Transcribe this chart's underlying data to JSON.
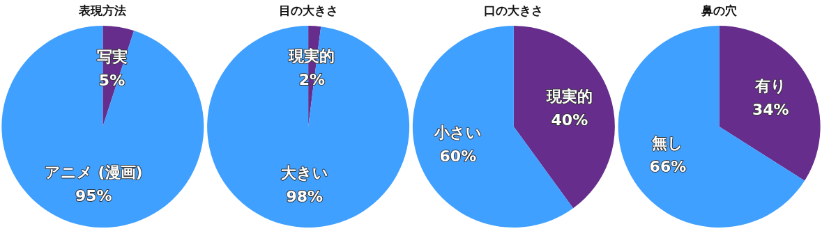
{
  "chart_data": [
    {
      "type": "pie",
      "title": "表現方法",
      "categories": [
        "写実",
        "アニメ (漫画)"
      ],
      "values": [
        5,
        95
      ],
      "colors": [
        "#662d8c",
        "#3fa0ff"
      ],
      "value_labels": [
        "5%",
        "95%"
      ]
    },
    {
      "type": "pie",
      "title": "目の大きさ",
      "categories": [
        "現実的",
        "大きい"
      ],
      "values": [
        2,
        98
      ],
      "colors": [
        "#662d8c",
        "#3fa0ff"
      ],
      "value_labels": [
        "2%",
        "98%"
      ]
    },
    {
      "type": "pie",
      "title": "口の大きさ",
      "categories": [
        "現実的",
        "小さい"
      ],
      "values": [
        40,
        60
      ],
      "colors": [
        "#662d8c",
        "#3fa0ff"
      ],
      "value_labels": [
        "40%",
        "60%"
      ]
    },
    {
      "type": "pie",
      "title": "鼻の穴",
      "categories": [
        "有り",
        "無し"
      ],
      "values": [
        34,
        66
      ],
      "colors": [
        "#662d8c",
        "#3fa0ff"
      ],
      "value_labels": [
        "34%",
        "66%"
      ]
    }
  ]
}
